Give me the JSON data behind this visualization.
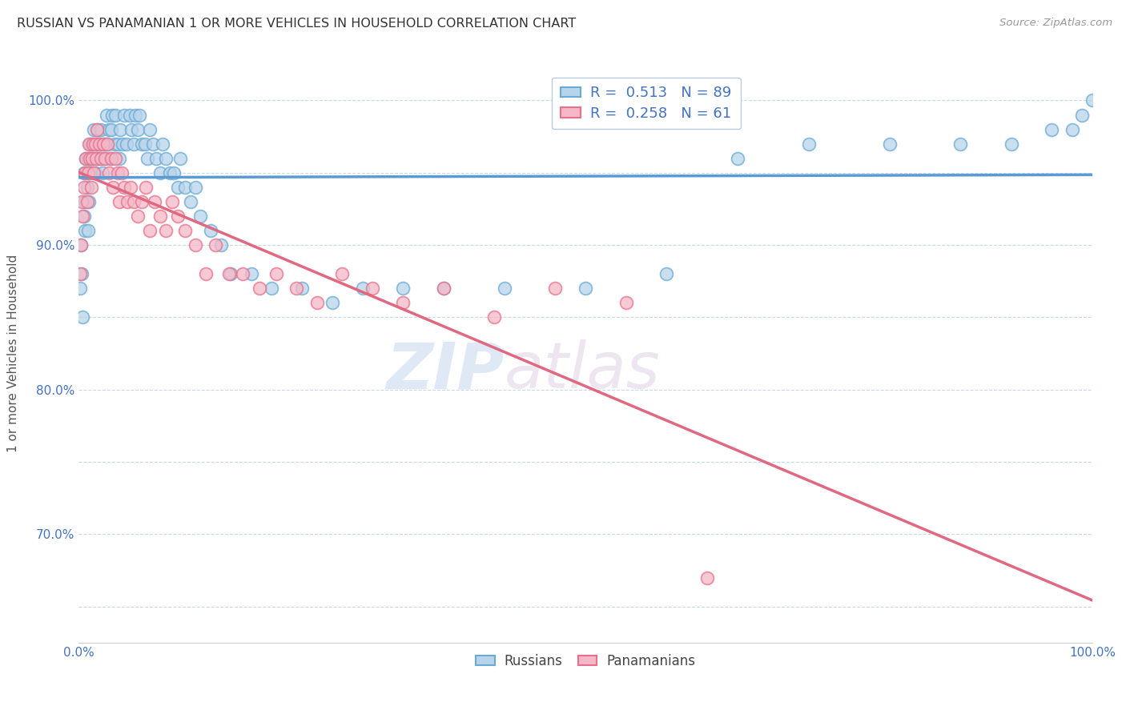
{
  "title": "RUSSIAN VS PANAMANIAN 1 OR MORE VEHICLES IN HOUSEHOLD CORRELATION CHART",
  "source": "Source: ZipAtlas.com",
  "ylabel": "1 or more Vehicles in Household",
  "y_ticks": [
    0.65,
    0.7,
    0.75,
    0.8,
    0.85,
    0.9,
    0.95,
    1.0
  ],
  "y_tick_labels": [
    "",
    "70.0%",
    "",
    "80.0%",
    "",
    "90.0%",
    "",
    "100.0%"
  ],
  "x_range": [
    0.0,
    1.0
  ],
  "y_range": [
    0.625,
    1.025
  ],
  "legend_label_russian": "Russians",
  "legend_label_panamanian": "Panamanians",
  "r_russian": "0.513",
  "n_russian": "89",
  "r_panamanian": "0.258",
  "n_panamanian": "61",
  "russian_color": "#b8d4ea",
  "panamanian_color": "#f5b8c8",
  "russian_edge_color": "#6aaad4",
  "panamanian_edge_color": "#e8708a",
  "russian_line_color": "#5b9bd5",
  "panamanian_line_color": "#e06880",
  "watermark_zip": "ZIP",
  "watermark_atlas": "atlas",
  "background_color": "#ffffff",
  "russian_x": [
    0.001,
    0.002,
    0.003,
    0.004,
    0.005,
    0.005,
    0.006,
    0.006,
    0.007,
    0.008,
    0.009,
    0.009,
    0.01,
    0.01,
    0.011,
    0.011,
    0.012,
    0.013,
    0.014,
    0.015,
    0.016,
    0.017,
    0.018,
    0.019,
    0.02,
    0.021,
    0.022,
    0.023,
    0.025,
    0.026,
    0.027,
    0.028,
    0.03,
    0.031,
    0.032,
    0.033,
    0.035,
    0.036,
    0.038,
    0.04,
    0.041,
    0.043,
    0.045,
    0.047,
    0.05,
    0.052,
    0.054,
    0.056,
    0.058,
    0.06,
    0.062,
    0.065,
    0.068,
    0.07,
    0.073,
    0.076,
    0.08,
    0.083,
    0.086,
    0.09,
    0.094,
    0.098,
    0.1,
    0.105,
    0.11,
    0.115,
    0.12,
    0.13,
    0.14,
    0.15,
    0.17,
    0.19,
    0.22,
    0.25,
    0.28,
    0.32,
    0.36,
    0.42,
    0.5,
    0.58,
    0.65,
    0.72,
    0.8,
    0.87,
    0.92,
    0.96,
    0.98,
    0.99,
    1.0
  ],
  "russian_y": [
    0.87,
    0.9,
    0.88,
    0.85,
    0.92,
    0.95,
    0.93,
    0.91,
    0.96,
    0.94,
    0.91,
    0.96,
    0.95,
    0.93,
    0.97,
    0.95,
    0.96,
    0.97,
    0.96,
    0.98,
    0.95,
    0.97,
    0.96,
    0.98,
    0.97,
    0.96,
    0.98,
    0.95,
    0.97,
    0.96,
    0.99,
    0.97,
    0.98,
    0.96,
    0.98,
    0.99,
    0.97,
    0.99,
    0.97,
    0.96,
    0.98,
    0.97,
    0.99,
    0.97,
    0.99,
    0.98,
    0.97,
    0.99,
    0.98,
    0.99,
    0.97,
    0.97,
    0.96,
    0.98,
    0.97,
    0.96,
    0.95,
    0.97,
    0.96,
    0.95,
    0.95,
    0.94,
    0.96,
    0.94,
    0.93,
    0.94,
    0.92,
    0.91,
    0.9,
    0.88,
    0.88,
    0.87,
    0.87,
    0.86,
    0.87,
    0.87,
    0.87,
    0.87,
    0.87,
    0.88,
    0.96,
    0.97,
    0.97,
    0.97,
    0.97,
    0.98,
    0.98,
    0.99,
    1.0
  ],
  "panamanian_x": [
    0.001,
    0.002,
    0.003,
    0.004,
    0.005,
    0.006,
    0.007,
    0.008,
    0.009,
    0.01,
    0.011,
    0.012,
    0.013,
    0.014,
    0.015,
    0.016,
    0.017,
    0.018,
    0.02,
    0.022,
    0.024,
    0.026,
    0.028,
    0.03,
    0.032,
    0.034,
    0.036,
    0.038,
    0.04,
    0.042,
    0.045,
    0.048,
    0.051,
    0.054,
    0.058,
    0.062,
    0.066,
    0.07,
    0.075,
    0.08,
    0.086,
    0.092,
    0.098,
    0.105,
    0.115,
    0.125,
    0.135,
    0.148,
    0.162,
    0.178,
    0.195,
    0.215,
    0.235,
    0.26,
    0.29,
    0.32,
    0.36,
    0.41,
    0.47,
    0.54,
    0.62
  ],
  "panamanian_y": [
    0.88,
    0.9,
    0.93,
    0.92,
    0.94,
    0.95,
    0.96,
    0.93,
    0.95,
    0.97,
    0.96,
    0.94,
    0.96,
    0.97,
    0.95,
    0.97,
    0.96,
    0.98,
    0.97,
    0.96,
    0.97,
    0.96,
    0.97,
    0.95,
    0.96,
    0.94,
    0.96,
    0.95,
    0.93,
    0.95,
    0.94,
    0.93,
    0.94,
    0.93,
    0.92,
    0.93,
    0.94,
    0.91,
    0.93,
    0.92,
    0.91,
    0.93,
    0.92,
    0.91,
    0.9,
    0.88,
    0.9,
    0.88,
    0.88,
    0.87,
    0.88,
    0.87,
    0.86,
    0.88,
    0.87,
    0.86,
    0.87,
    0.85,
    0.87,
    0.86,
    0.67
  ]
}
